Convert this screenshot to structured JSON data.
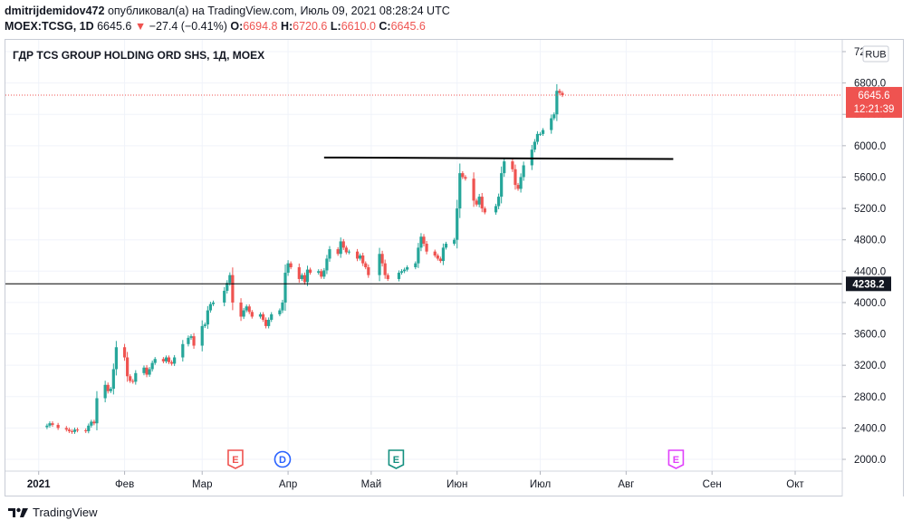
{
  "header": {
    "author": "dmitrijdemidov472",
    "published_text": "опубликовал(а) на TradingView.com, Июль 09, 2021 08:28:24 UTC",
    "symbol_line": {
      "symbol": "MOEX:TCSG, 1D",
      "last": "6645.6",
      "change": "−27.4 (−0.41%)",
      "open_label": "O:",
      "open": "6694.8",
      "high_label": "H:",
      "high": "6720.6",
      "low_label": "L:",
      "low": "6610.0",
      "close_label": "C:",
      "close": "6645.6"
    }
  },
  "colors": {
    "up": "#26a69a",
    "down": "#ef5350",
    "price_line": "#ef5350",
    "grid": "#f0f3fa",
    "earnings_red": "#ef5350",
    "dividend_blue": "#2962ff",
    "earnings_teal": "#138f7f",
    "earnings_purple": "#e040fb"
  },
  "footer": {
    "logo_icon": "tradingview-logo-icon",
    "text": "TradingView"
  },
  "chart_data": {
    "type": "candlestick",
    "title": "ГДР TCS GROUP HOLDING ORD SHS, 1Д, MOEX",
    "currency_label": "RUB",
    "ylim": [
      1850,
      7350
    ],
    "y_ticks": [
      "7200.0",
      "6800.0",
      "6400.0",
      "6000.0",
      "5600.0",
      "5200.0",
      "4800.0",
      "4400.0",
      "4000.0",
      "3600.0",
      "3200.0",
      "2800.0",
      "2400.0",
      "2000.0"
    ],
    "x_ticks": [
      "2021",
      "Фев",
      "Мар",
      "Апр",
      "Май",
      "Июн",
      "Июл",
      "Авг",
      "Сен",
      "Окт"
    ],
    "x_tick_days": [
      0,
      31,
      59,
      90,
      120,
      151,
      181,
      212,
      243,
      273
    ],
    "x_range_days": [
      -12,
      290
    ],
    "last_price": {
      "value": 6645.6,
      "label": "6645.6",
      "countdown": "12:21:39"
    },
    "horizontal_line": {
      "value": 4238.2,
      "label": "4238.2"
    },
    "trend_line": {
      "from": [
        "2021-04-14",
        5850
      ],
      "to": [
        "2021-08-18",
        5830
      ]
    },
    "events": [
      {
        "label": "E",
        "date": "2021-03-13",
        "kind": "earnings_red"
      },
      {
        "label": "D",
        "date": "2021-03-30",
        "kind": "dividend_blue"
      },
      {
        "label": "E",
        "date": "2021-05-10",
        "kind": "earnings_teal"
      },
      {
        "label": "E",
        "date": "2021-08-19",
        "kind": "earnings_purple"
      }
    ],
    "closes": [
      [
        "2021-01-04",
        2430
      ],
      [
        "2021-01-05",
        2460
      ],
      [
        "2021-01-06",
        2440
      ],
      [
        "2021-01-08",
        2400
      ],
      [
        "2021-01-11",
        2380
      ],
      [
        "2021-01-12",
        2360
      ],
      [
        "2021-01-13",
        2350
      ],
      [
        "2021-01-14",
        2380
      ],
      [
        "2021-01-15",
        2370
      ],
      [
        "2021-01-18",
        2360
      ],
      [
        "2021-01-19",
        2430
      ],
      [
        "2021-01-20",
        2480
      ],
      [
        "2021-01-21",
        2460
      ],
      [
        "2021-01-22",
        2780
      ],
      [
        "2021-01-25",
        2950
      ],
      [
        "2021-01-26",
        2870
      ],
      [
        "2021-01-27",
        2900
      ],
      [
        "2021-01-28",
        3150
      ],
      [
        "2021-01-29",
        3430
      ],
      [
        "2021-02-01",
        3300
      ],
      [
        "2021-02-02",
        3060
      ],
      [
        "2021-02-03",
        3000
      ],
      [
        "2021-02-04",
        2990
      ],
      [
        "2021-02-05",
        3100
      ],
      [
        "2021-02-08",
        3170
      ],
      [
        "2021-02-09",
        3080
      ],
      [
        "2021-02-10",
        3150
      ],
      [
        "2021-02-11",
        3230
      ],
      [
        "2021-02-12",
        3280
      ],
      [
        "2021-02-15",
        3250
      ],
      [
        "2021-02-16",
        3300
      ],
      [
        "2021-02-17",
        3240
      ],
      [
        "2021-02-18",
        3220
      ],
      [
        "2021-02-19",
        3300
      ],
      [
        "2021-02-22",
        3470
      ],
      [
        "2021-02-24",
        3550
      ],
      [
        "2021-02-25",
        3570
      ],
      [
        "2021-02-26",
        3450
      ],
      [
        "2021-03-01",
        3700
      ],
      [
        "2021-03-02",
        3720
      ],
      [
        "2021-03-03",
        3900
      ],
      [
        "2021-03-04",
        3980
      ],
      [
        "2021-03-05",
        4000
      ],
      [
        "2021-03-09",
        4150
      ],
      [
        "2021-03-10",
        4250
      ],
      [
        "2021-03-11",
        4350
      ],
      [
        "2021-03-12",
        4000
      ],
      [
        "2021-03-15",
        3820
      ],
      [
        "2021-03-16",
        3900
      ],
      [
        "2021-03-17",
        3950
      ],
      [
        "2021-03-18",
        3880
      ],
      [
        "2021-03-19",
        3820
      ],
      [
        "2021-03-22",
        3850
      ],
      [
        "2021-03-23",
        3780
      ],
      [
        "2021-03-24",
        3700
      ],
      [
        "2021-03-25",
        3780
      ],
      [
        "2021-03-26",
        3850
      ],
      [
        "2021-03-29",
        3900
      ],
      [
        "2021-03-30",
        4000
      ],
      [
        "2021-03-31",
        4380
      ],
      [
        "2021-04-01",
        4500
      ],
      [
        "2021-04-02",
        4450
      ],
      [
        "2021-04-05",
        4300
      ],
      [
        "2021-04-06",
        4350
      ],
      [
        "2021-04-07",
        4260
      ],
      [
        "2021-04-08",
        4420
      ],
      [
        "2021-04-09",
        4380
      ],
      [
        "2021-04-12",
        4400
      ],
      [
        "2021-04-13",
        4330
      ],
      [
        "2021-04-14",
        4410
      ],
      [
        "2021-04-15",
        4560
      ],
      [
        "2021-04-16",
        4680
      ],
      [
        "2021-04-19",
        4620
      ],
      [
        "2021-04-20",
        4780
      ],
      [
        "2021-04-21",
        4700
      ],
      [
        "2021-04-22",
        4640
      ],
      [
        "2021-04-23",
        4650
      ],
      [
        "2021-04-26",
        4560
      ],
      [
        "2021-04-27",
        4600
      ],
      [
        "2021-04-28",
        4500
      ],
      [
        "2021-04-29",
        4450
      ],
      [
        "2021-04-30",
        4350
      ],
      [
        "2021-05-04",
        4620
      ],
      [
        "2021-05-05",
        4500
      ],
      [
        "2021-05-06",
        4350
      ],
      [
        "2021-05-07",
        4300
      ],
      [
        "2021-05-11",
        4380
      ],
      [
        "2021-05-12",
        4400
      ],
      [
        "2021-05-13",
        4420
      ],
      [
        "2021-05-14",
        4450
      ],
      [
        "2021-05-17",
        4500
      ],
      [
        "2021-05-18",
        4700
      ],
      [
        "2021-05-19",
        4840
      ],
      [
        "2021-05-20",
        4750
      ],
      [
        "2021-05-21",
        4650
      ],
      [
        "2021-05-24",
        4600
      ],
      [
        "2021-05-25",
        4560
      ],
      [
        "2021-05-26",
        4530
      ],
      [
        "2021-05-27",
        4700
      ],
      [
        "2021-05-28",
        4750
      ],
      [
        "2021-05-31",
        4800
      ],
      [
        "2021-06-01",
        5200
      ],
      [
        "2021-06-02",
        5650
      ],
      [
        "2021-06-03",
        5600
      ],
      [
        "2021-06-04",
        5580
      ],
      [
        "2021-06-07",
        5300
      ],
      [
        "2021-06-08",
        5250
      ],
      [
        "2021-06-09",
        5350
      ],
      [
        "2021-06-10",
        5200
      ],
      [
        "2021-06-11",
        5150
      ],
      [
        "2021-06-15",
        5230
      ],
      [
        "2021-06-16",
        5350
      ],
      [
        "2021-06-17",
        5650
      ],
      [
        "2021-06-18",
        5800
      ],
      [
        "2021-06-21",
        5700
      ],
      [
        "2021-06-22",
        5500
      ],
      [
        "2021-06-23",
        5450
      ],
      [
        "2021-06-24",
        5600
      ],
      [
        "2021-06-25",
        5750
      ],
      [
        "2021-06-28",
        5950
      ],
      [
        "2021-06-29",
        6050
      ],
      [
        "2021-06-30",
        6150
      ],
      [
        "2021-07-01",
        6150
      ],
      [
        "2021-07-02",
        6200
      ],
      [
        "2021-07-05",
        6350
      ],
      [
        "2021-07-06",
        6400
      ],
      [
        "2021-07-07",
        6700
      ],
      [
        "2021-07-08",
        6673
      ],
      [
        "2021-07-09",
        6645.6
      ]
    ]
  }
}
